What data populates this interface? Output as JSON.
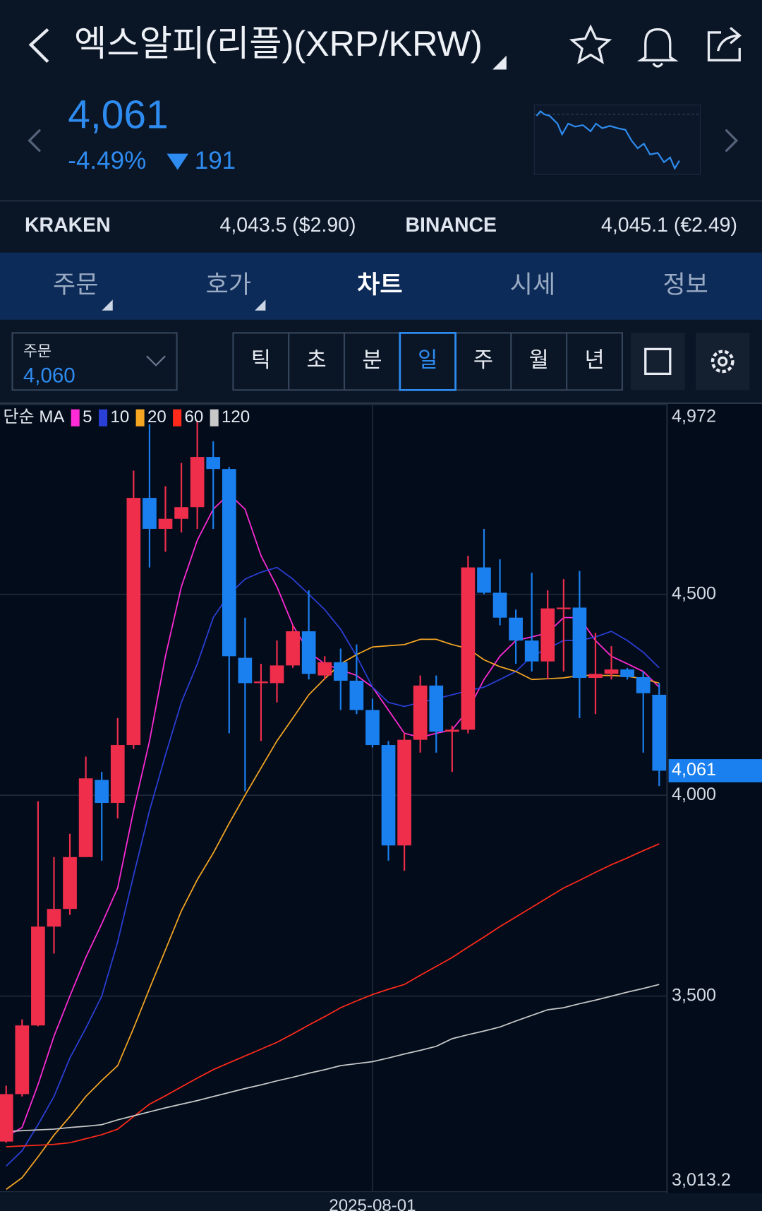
{
  "header": {
    "title": "엑스알피(리플)(XRP/KRW)",
    "price": "4,061",
    "change_pct": "-4.49%",
    "change": "191"
  },
  "exchanges": [
    {
      "name": "KRAKEN",
      "price": "4,043.5 ($2.90)"
    },
    {
      "name": "BINANCE",
      "price": "4,045.1 (€2.49)"
    }
  ],
  "tabs": [
    "주문",
    "호가",
    "차트",
    "시세",
    "정보"
  ],
  "active_tab": 2,
  "order_box": {
    "label": "주문",
    "value": "4,060"
  },
  "periods": [
    "틱",
    "초",
    "분",
    "일",
    "주",
    "월",
    "년"
  ],
  "active_period": 3,
  "chart_data": {
    "type": "candlestick",
    "legend_label": "단순 MA",
    "categories": [
      null,
      null,
      null,
      null,
      null,
      null,
      null,
      null,
      null,
      null,
      null,
      null,
      null,
      null,
      null,
      null,
      null,
      null,
      null,
      null,
      null,
      null,
      null,
      "2025-08-01",
      null,
      null,
      null,
      null,
      null,
      null,
      null,
      null,
      null,
      null,
      null,
      null,
      null,
      null,
      null,
      null,
      null,
      null
    ],
    "open": [
      3138,
      3256,
      3427,
      3673,
      3717,
      3846,
      4038,
      3981,
      4125,
      4740,
      4663,
      4688,
      4717,
      4842,
      4812,
      4342,
      4279,
      4279,
      4323,
      4408,
      4298,
      4331,
      4285,
      4212,
      4125,
      3875,
      4138,
      4273,
      4158,
      4163,
      4567,
      4504,
      4442,
      4385,
      4333,
      4465,
      4467,
      4292,
      4302,
      4313,
      4294,
      4250
    ],
    "high": [
      3277,
      3442,
      3985,
      3846,
      3904,
      4096,
      4058,
      4192,
      4808,
      4923,
      4769,
      4827,
      4933,
      4881,
      4817,
      4442,
      4327,
      4385,
      4423,
      4510,
      4346,
      4365,
      4375,
      4240,
      4135,
      4154,
      4298,
      4298,
      4173,
      4596,
      4663,
      4587,
      4462,
      4554,
      4510,
      4538,
      4558,
      4404,
      4371,
      4317,
      4308,
      4279
    ],
    "low": [
      3135,
      3250,
      3425,
      3606,
      3702,
      3846,
      3837,
      3942,
      4115,
      4567,
      4606,
      4654,
      4663,
      4663,
      4154,
      4010,
      4135,
      4231,
      4317,
      4288,
      4288,
      4212,
      4202,
      4119,
      3837,
      3812,
      4106,
      4106,
      4058,
      4154,
      4500,
      4423,
      4327,
      4308,
      4288,
      4308,
      4192,
      4202,
      4288,
      4288,
      4106,
      4023
    ],
    "close": [
      3256,
      3427,
      3673,
      3717,
      3846,
      4042,
      3981,
      4125,
      4740,
      4663,
      4688,
      4717,
      4842,
      4812,
      4346,
      4279,
      4283,
      4323,
      4408,
      4302,
      4331,
      4285,
      4212,
      4125,
      3875,
      4138,
      4273,
      4158,
      4163,
      4567,
      4504,
      4442,
      4385,
      4333,
      4465,
      4467,
      4292,
      4302,
      4313,
      4294,
      4254,
      4061
    ],
    "series": [
      {
        "name": "5",
        "color": "#ff2bd6",
        "values": [
          3150,
          3173,
          3280,
          3400,
          3500,
          3596,
          3680,
          3769,
          3962,
          4135,
          4346,
          4519,
          4635,
          4712,
          4750,
          4712,
          4596,
          4519,
          4423,
          4356,
          4327,
          4312,
          4298,
          4269,
          4212,
          4154,
          4144,
          4154,
          4163,
          4212,
          4288,
          4346,
          4385,
          4394,
          4404,
          4442,
          4442,
          4385,
          4346,
          4327,
          4308,
          4269
        ]
      },
      {
        "name": "10",
        "color": "#2a3fd6",
        "values": [
          3077,
          3115,
          3180,
          3250,
          3346,
          3420,
          3500,
          3635,
          3800,
          3962,
          4100,
          4231,
          4327,
          4442,
          4500,
          4538,
          4555,
          4567,
          4538,
          4500,
          4462,
          4413,
          4346,
          4269,
          4231,
          4221,
          4231,
          4240,
          4250,
          4260,
          4269,
          4288,
          4308,
          4346,
          4365,
          4385,
          4385,
          4394,
          4408,
          4385,
          4356,
          4317
        ]
      },
      {
        "name": "20",
        "color": "#f5a623",
        "values": [
          3019,
          3048,
          3100,
          3154,
          3200,
          3250,
          3290,
          3327,
          3420,
          3519,
          3615,
          3712,
          3790,
          3856,
          3930,
          4000,
          4068,
          4135,
          4192,
          4250,
          4290,
          4327,
          4350,
          4369,
          4372,
          4375,
          4388,
          4388,
          4375,
          4365,
          4337,
          4320,
          4308,
          4288,
          4290,
          4292,
          4298,
          4298,
          4298,
          4296,
          4290,
          4279
        ]
      },
      {
        "name": "60",
        "color": "#ff2a1a",
        "values": [
          3125,
          3127,
          3129,
          3131,
          3135,
          3145,
          3155,
          3169,
          3200,
          3231,
          3252,
          3274,
          3296,
          3317,
          3334,
          3351,
          3368,
          3385,
          3406,
          3428,
          3449,
          3471,
          3488,
          3504,
          3517,
          3529,
          3552,
          3574,
          3596,
          3622,
          3647,
          3673,
          3697,
          3721,
          3745,
          3769,
          3788,
          3808,
          3827,
          3844,
          3862,
          3879
        ]
      },
      {
        "name": "120",
        "color": "#c8c8c8",
        "values": [
          3163,
          3165,
          3167,
          3169,
          3173,
          3176,
          3180,
          3192,
          3202,
          3212,
          3222,
          3231,
          3240,
          3250,
          3260,
          3270,
          3279,
          3289,
          3298,
          3308,
          3317,
          3327,
          3332,
          3337,
          3346,
          3356,
          3365,
          3375,
          3394,
          3404,
          3413,
          3423,
          3438,
          3452,
          3466,
          3471,
          3481,
          3490,
          3500,
          3510,
          3519,
          3529
        ]
      }
    ],
    "up_color": "#ef2e4c",
    "down_color": "#1a80f0",
    "ylim": [
      3013.2,
      4972
    ],
    "yticks": [
      {
        "value": 4972,
        "label": "4,972"
      },
      {
        "value": 4500,
        "label": "4,500"
      },
      {
        "value": 4000,
        "label": "4,000"
      },
      {
        "value": 3500,
        "label": "3,500"
      },
      {
        "value": 3013.2,
        "label": "3,013.2"
      }
    ],
    "current_price": {
      "value": 4061,
      "label": "4,061"
    },
    "grid": true
  }
}
